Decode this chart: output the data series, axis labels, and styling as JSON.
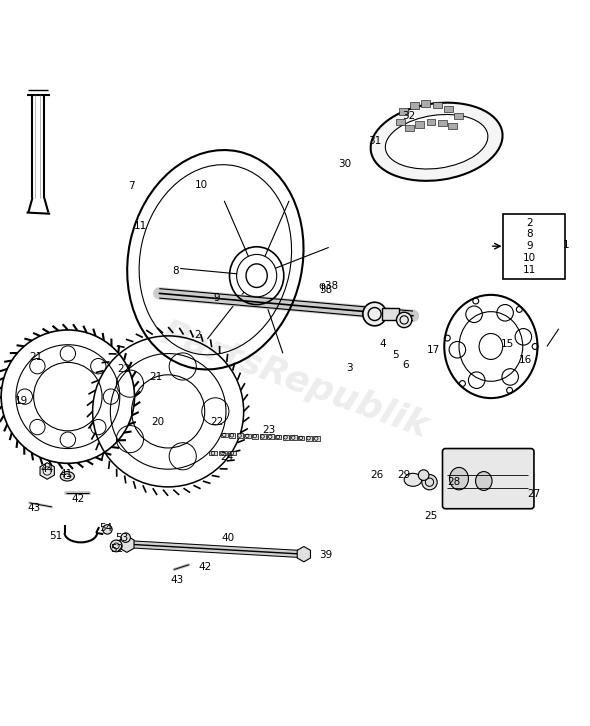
{
  "title": "",
  "bg_color": "#ffffff",
  "watermark_text": "PartsRepublik",
  "watermark_color": "#cccccc",
  "box_numbers": [
    "2",
    "8",
    "9",
    "10",
    "11"
  ]
}
